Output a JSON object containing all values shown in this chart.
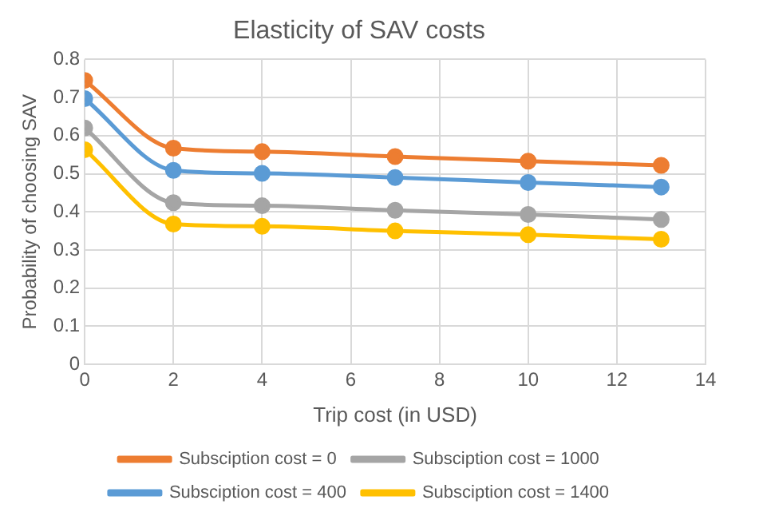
{
  "chart_data": {
    "type": "line",
    "title": "Elasticity of SAV costs",
    "xlabel": "Trip cost (in USD)",
    "ylabel": "Probability of choosing SAV",
    "x": [
      0,
      2,
      4,
      7,
      10,
      13
    ],
    "series": [
      {
        "name": "Subsciption cost = 0",
        "color": "#ed7d31",
        "values": [
          0.745,
          0.567,
          0.558,
          0.545,
          0.533,
          0.522
        ]
      },
      {
        "name": "Subsciption cost = 400",
        "color": "#5b9bd5",
        "values": [
          0.697,
          0.509,
          0.501,
          0.49,
          0.477,
          0.465
        ]
      },
      {
        "name": "Subsciption cost = 1000",
        "color": "#a5a5a5",
        "values": [
          0.62,
          0.424,
          0.416,
          0.404,
          0.393,
          0.38
        ]
      },
      {
        "name": "Subsciption cost = 1400",
        "color": "#ffc000",
        "values": [
          0.563,
          0.368,
          0.362,
          0.35,
          0.34,
          0.328
        ]
      }
    ],
    "xlim": [
      0,
      14
    ],
    "xticks": [
      0,
      2,
      4,
      6,
      8,
      10,
      12,
      14
    ],
    "ylim": [
      0,
      0.8
    ],
    "yticks": [
      0,
      0.1,
      0.2,
      0.3,
      0.4,
      0.5,
      0.6,
      0.7,
      0.8
    ],
    "grid": true,
    "legend": "bottom",
    "marker": "circle",
    "line_style": "solid"
  }
}
